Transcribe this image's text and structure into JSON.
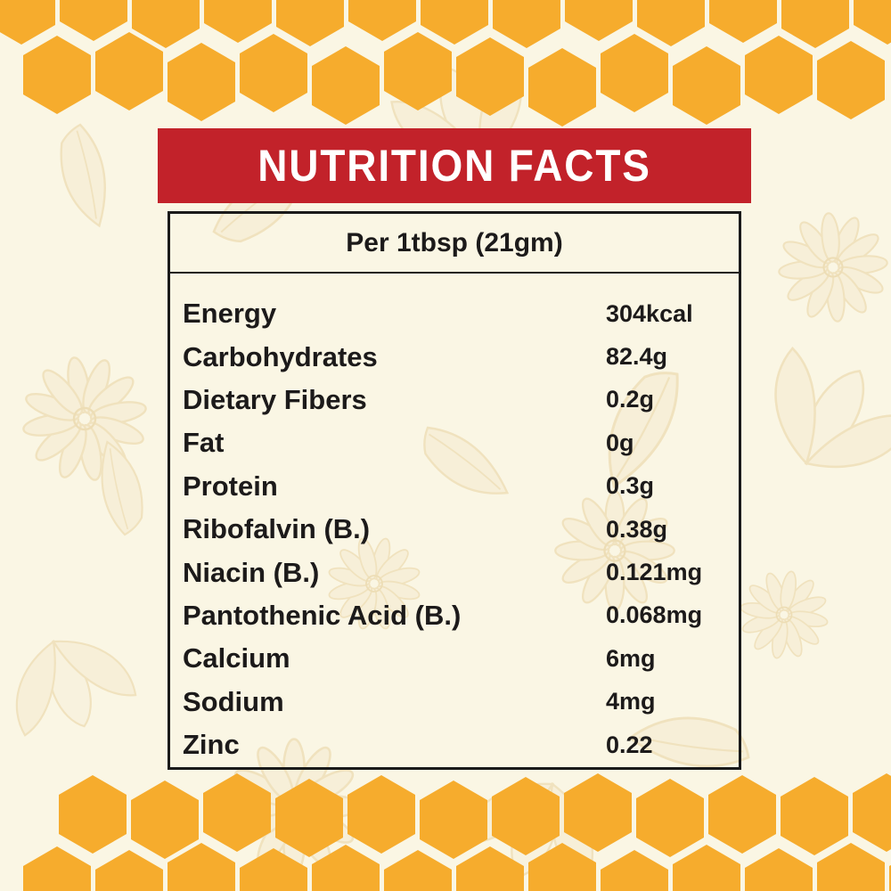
{
  "title": "NUTRITION FACTS",
  "serving": "Per 1tbsp (21gm)",
  "rows": [
    {
      "label": "Energy",
      "value": "304kcal"
    },
    {
      "label": "Carbohydrates",
      "value": "82.4g"
    },
    {
      "label": "Dietary Fibers",
      "value": "0.2g"
    },
    {
      "label": "Fat",
      "value": "0g"
    },
    {
      "label": "Protein",
      "value": "0.3g"
    },
    {
      "label": "Ribofalvin (B.)",
      "value": "0.38g"
    },
    {
      "label": "Niacin (B.)",
      "value": "0.121mg"
    },
    {
      "label": "Pantothenic Acid (B.)",
      "value": "0.068mg"
    },
    {
      "label": "Calcium",
      "value": "6mg"
    },
    {
      "label": "Sodium",
      "value": "4mg"
    },
    {
      "label": "Zinc",
      "value": "0.22"
    }
  ],
  "theme": {
    "background": "#FAF6E4",
    "honeycomb_orange": "#F6AC2D",
    "banner_red": "#C2222A",
    "text_black": "#1C1A1A",
    "border_black": "#1A1A1A",
    "floral_line": "#E9D2A0",
    "floral_fill": "#F6EBCF"
  }
}
